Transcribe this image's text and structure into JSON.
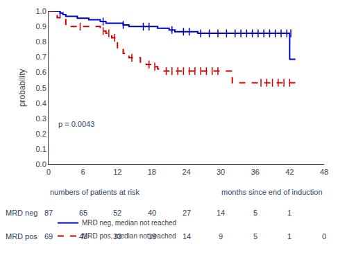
{
  "chart_data": {
    "type": "line",
    "ylabel": "probability",
    "xlim": [
      0,
      48
    ],
    "ylim": [
      0.0,
      1.0
    ],
    "xticks": [
      0,
      6,
      12,
      18,
      24,
      30,
      36,
      42,
      48
    ],
    "yticks": [
      {
        "value": 0.0,
        "label": "0.0"
      },
      0.1,
      0.2,
      0.3,
      0.4,
      0.5,
      0.6,
      0.7,
      0.8,
      0.9,
      {
        "value": 1.0,
        "label": "1.0"
      }
    ],
    "grid": false,
    "legend": "lower left",
    "annotations": [
      "p = 0.0043"
    ],
    "series": [
      {
        "name": "MRD neg, median not reached",
        "color": "#0000cc",
        "line_style": "solid",
        "marker": "tick",
        "x": [
          0,
          1.5,
          2.0,
          2.5,
          3.0,
          3.5,
          4.0,
          5.0,
          5.5,
          6.5,
          7.0,
          8.0,
          9.0,
          9.5,
          10.0,
          11.0,
          12.0,
          13.0,
          14.0,
          15.0,
          16.0,
          17.0,
          18.0,
          19.0,
          20.0,
          21.0,
          22.0,
          23.0,
          24.0,
          25.0,
          26.0,
          27.0,
          28.0,
          29.0,
          30.0,
          31.0,
          32.0,
          33.0,
          34.0,
          35.0,
          36.0,
          37.0,
          38.0,
          39.0,
          40.0,
          41.0,
          42.0,
          43.0
        ],
        "values": [
          1.0,
          1.0,
          0.988,
          0.977,
          0.966,
          0.966,
          0.966,
          0.954,
          0.954,
          0.954,
          0.943,
          0.943,
          0.932,
          0.932,
          0.921,
          0.921,
          0.921,
          0.91,
          0.899,
          0.899,
          0.899,
          0.899,
          0.899,
          0.888,
          0.888,
          0.877,
          0.866,
          0.866,
          0.866,
          0.866,
          0.855,
          0.855,
          0.855,
          0.855,
          0.855,
          0.855,
          0.855,
          0.855,
          0.855,
          0.855,
          0.855,
          0.855,
          0.855,
          0.855,
          0.855,
          0.855,
          0.686,
          0.686
        ],
        "censored": {
          "x": [
            2.0,
            9.5,
            13.0,
            16.5,
            17.5,
            21.5,
            23.5,
            24.5,
            26.5,
            28.0,
            29.5,
            31.0,
            32.5,
            33.5,
            34.5,
            35.5,
            36.5,
            37.5,
            38.5,
            39.5,
            40.5,
            41.5,
            42.2
          ],
          "values": [
            0.988,
            0.932,
            0.91,
            0.899,
            0.899,
            0.877,
            0.866,
            0.866,
            0.855,
            0.855,
            0.855,
            0.855,
            0.855,
            0.855,
            0.855,
            0.855,
            0.855,
            0.855,
            0.855,
            0.855,
            0.855,
            0.855,
            0.855
          ]
        }
      },
      {
        "name": "MRD pos, median not reached",
        "color": "#cc0000",
        "line_style": "dash",
        "marker": "tick",
        "x": [
          0,
          1.0,
          1.5,
          2.0,
          2.5,
          3.0,
          3.5,
          4.0,
          5.0,
          6.0,
          7.0,
          8.0,
          9.0,
          10.0,
          11.0,
          12.0,
          13.0,
          14.0,
          15.0,
          16.0,
          17.0,
          18.0,
          19.0,
          20.0,
          21.0,
          22.0,
          23.0,
          24.0,
          25.0,
          26.0,
          27.0,
          28.0,
          29.0,
          30.0,
          31.0,
          32.0,
          33.0,
          34.0,
          35.0,
          36.0,
          37.0,
          38.0,
          39.0,
          40.0,
          41.0,
          42.0,
          43.0
        ],
        "values": [
          1.0,
          0.971,
          0.957,
          0.957,
          0.957,
          0.899,
          0.899,
          0.899,
          0.899,
          0.899,
          0.899,
          0.899,
          0.87,
          0.855,
          0.826,
          0.754,
          0.725,
          0.696,
          0.696,
          0.667,
          0.652,
          0.638,
          0.623,
          0.609,
          0.609,
          0.609,
          0.609,
          0.609,
          0.609,
          0.609,
          0.609,
          0.609,
          0.609,
          0.609,
          0.609,
          0.533,
          0.533,
          0.533,
          0.533,
          0.533,
          0.533,
          0.533,
          0.533,
          0.533,
          0.533,
          0.533,
          0.533
        ],
        "censored": {
          "x": [
            5.5,
            9.5,
            10.5,
            11.5,
            14.5,
            17.5,
            18.5,
            20.5,
            21.5,
            22.5,
            23.5,
            24.5,
            25.5,
            26.5,
            27.5,
            28.5,
            29.5,
            37.0,
            38.0,
            39.0,
            40.0,
            41.0,
            42.0
          ],
          "values": [
            0.899,
            0.87,
            0.855,
            0.826,
            0.696,
            0.652,
            0.638,
            0.609,
            0.609,
            0.609,
            0.609,
            0.609,
            0.609,
            0.609,
            0.609,
            0.609,
            0.609,
            0.533,
            0.533,
            0.533,
            0.533,
            0.533,
            0.533
          ]
        }
      }
    ],
    "risk_table": {
      "title": "numbers of patients at risk",
      "xlabel": "months since end of induction",
      "x": [
        0,
        6,
        12,
        18,
        24,
        30,
        36,
        42,
        48
      ],
      "rows": [
        {
          "name": "MRD neg",
          "values": [
            87,
            65,
            52,
            40,
            27,
            14,
            5,
            1,
            null
          ]
        },
        {
          "name": "MRD pos",
          "values": [
            69,
            43,
            33,
            19,
            14,
            9,
            5,
            1,
            0
          ]
        }
      ]
    }
  }
}
